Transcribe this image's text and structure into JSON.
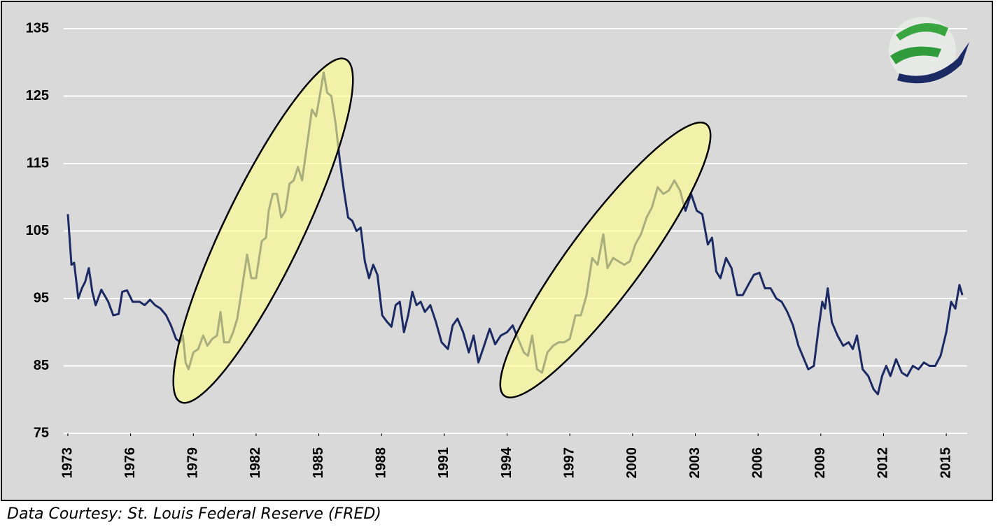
{
  "chart_data": {
    "type": "line",
    "source": "Data Courtesy: St. Louis Federal Reserve (FRED)",
    "color": "#1b2a63",
    "x": [
      1973.0,
      1973.17,
      1973.3,
      1973.5,
      1973.67,
      1973.83,
      1974.0,
      1974.17,
      1974.33,
      1974.6,
      1974.93,
      1975.17,
      1975.43,
      1975.6,
      1975.83,
      1976.1,
      1976.43,
      1976.67,
      1976.93,
      1977.17,
      1977.43,
      1977.7,
      1977.93,
      1978.17,
      1978.37,
      1978.5,
      1978.63,
      1978.77,
      1979.0,
      1979.23,
      1979.47,
      1979.67,
      1979.9,
      1980.13,
      1980.3,
      1980.47,
      1980.7,
      1980.9,
      1981.1,
      1981.3,
      1981.57,
      1981.77,
      1982.0,
      1982.27,
      1982.47,
      1982.6,
      1982.8,
      1983.0,
      1983.2,
      1983.4,
      1983.6,
      1983.8,
      1984.0,
      1984.2,
      1984.4,
      1984.67,
      1984.87,
      1985.07,
      1985.23,
      1985.4,
      1985.6,
      1985.8,
      1986.0,
      1986.2,
      1986.4,
      1986.6,
      1986.8,
      1987.0,
      1987.2,
      1987.4,
      1987.6,
      1987.8,
      1988.03,
      1988.27,
      1988.47,
      1988.67,
      1988.87,
      1989.07,
      1989.27,
      1989.47,
      1989.67,
      1989.87,
      1990.07,
      1990.33,
      1990.6,
      1990.87,
      1991.17,
      1991.4,
      1991.63,
      1991.9,
      1992.17,
      1992.4,
      1992.63,
      1992.9,
      1993.17,
      1993.43,
      1993.7,
      1994.0,
      1994.27,
      1994.53,
      1994.8,
      1995.0,
      1995.2,
      1995.43,
      1995.67,
      1995.93,
      1996.2,
      1996.47,
      1996.73,
      1997.0,
      1997.27,
      1997.53,
      1997.8,
      1998.07,
      1998.33,
      1998.6,
      1998.8,
      1999.07,
      1999.33,
      1999.6,
      1999.87,
      2000.13,
      2000.4,
      2000.67,
      2000.93,
      2001.2,
      2001.47,
      2001.73,
      2002.0,
      2002.27,
      2002.53,
      2002.8,
      2003.07,
      2003.33,
      2003.6,
      2003.8,
      2004.0,
      2004.2,
      2004.47,
      2004.73,
      2005.0,
      2005.27,
      2005.53,
      2005.8,
      2006.07,
      2006.33,
      2006.6,
      2006.87,
      2007.13,
      2007.4,
      2007.67,
      2007.93,
      2008.2,
      2008.4,
      2008.67,
      2008.87,
      2009.07,
      2009.2,
      2009.33,
      2009.53,
      2009.8,
      2010.07,
      2010.33,
      2010.53,
      2010.73,
      2011.0,
      2011.27,
      2011.53,
      2011.73,
      2011.93,
      2012.13,
      2012.33,
      2012.6,
      2012.87,
      2013.13,
      2013.4,
      2013.67,
      2013.93,
      2014.2,
      2014.47,
      2014.73,
      2015.0,
      2015.23,
      2015.43,
      2015.63,
      2015.77
    ],
    "values": [
      107.5,
      100,
      100.3,
      95,
      96.5,
      97.5,
      99.5,
      96,
      94,
      96.3,
      94.5,
      92.5,
      92.7,
      96,
      96.2,
      94.5,
      94.5,
      94,
      94.8,
      94,
      93.5,
      92.5,
      91,
      89,
      88.5,
      89.5,
      85.5,
      84.5,
      87,
      87.5,
      89.5,
      88,
      89,
      89.5,
      93,
      88.5,
      88.5,
      90,
      92,
      96,
      101.5,
      98,
      98,
      103.5,
      104,
      108,
      110.5,
      110.5,
      107,
      108,
      112,
      112.5,
      114.5,
      112.5,
      117,
      123,
      122,
      125.5,
      128.5,
      125.5,
      125,
      121,
      115.5,
      111,
      107,
      106.5,
      105,
      105.5,
      100.5,
      98,
      100,
      98.5,
      92.5,
      91.5,
      90.8,
      94,
      94.5,
      90,
      92.5,
      96,
      94,
      94.5,
      93,
      94,
      91.5,
      88.5,
      87.5,
      91,
      92,
      90,
      87,
      89.5,
      85.5,
      88,
      90.5,
      88.2,
      89.5,
      90,
      91,
      89,
      87,
      86.5,
      89.5,
      84.5,
      84,
      87,
      88,
      88.5,
      88.5,
      89,
      92.5,
      92.5,
      95.5,
      101,
      100,
      104.5,
      99.5,
      101,
      100.5,
      100,
      100.5,
      103,
      104.5,
      107,
      108.5,
      111.5,
      110.5,
      111,
      112.5,
      111,
      108,
      110.5,
      108,
      107.5,
      103,
      104,
      99,
      98,
      101,
      99.5,
      95.5,
      95.5,
      97,
      98.5,
      98.8,
      96.5,
      96.5,
      95,
      94.5,
      93,
      91,
      88,
      86,
      84.5,
      85,
      90,
      94.5,
      93.5,
      96.5,
      91.5,
      89.5,
      88,
      88.5,
      87.5,
      89.5,
      84.5,
      83.5,
      81.5,
      80.8,
      83.5,
      85,
      83.5,
      86,
      84,
      83.5,
      85,
      84.5,
      85.5,
      85,
      85,
      86.5,
      90,
      94.5,
      93.5,
      97,
      95.5
    ],
    "xlim": [
      1972.8,
      2016.0
    ],
    "xticks": [
      1973,
      1976,
      1979,
      1982,
      1985,
      1988,
      1991,
      1994,
      1997,
      2000,
      2003,
      2006,
      2009,
      2012,
      2015
    ],
    "ylim": [
      75,
      135
    ],
    "yticks": [
      75,
      85,
      95,
      105,
      115,
      125,
      135
    ],
    "grid": true
  }
}
